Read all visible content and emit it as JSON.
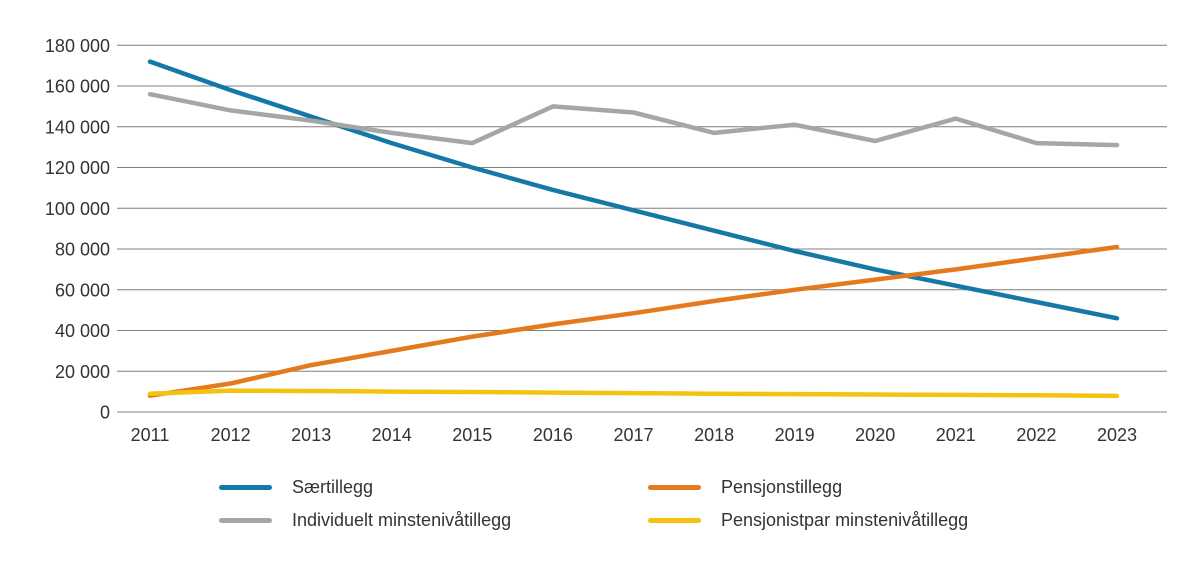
{
  "chart_data": {
    "type": "line",
    "categories": [
      "2011",
      "2012",
      "2013",
      "2014",
      "2015",
      "2016",
      "2017",
      "2018",
      "2019",
      "2020",
      "2021",
      "2022",
      "2023"
    ],
    "series": [
      {
        "name": "Særtillegg",
        "color": "#1579a7",
        "values": [
          172000,
          158000,
          145000,
          132000,
          120000,
          109000,
          99000,
          89000,
          79000,
          70000,
          62000,
          54000,
          46000
        ]
      },
      {
        "name": "Pensjonstillegg",
        "color": "#e5791d",
        "values": [
          8000,
          14000,
          23000,
          30000,
          37000,
          43000,
          48500,
          54500,
          60000,
          65000,
          70000,
          75500,
          81000
        ]
      },
      {
        "name": "Individuelt minstenivåtillegg",
        "color": "#a6a6a6",
        "values": [
          156000,
          148000,
          143000,
          137000,
          132000,
          150000,
          147000,
          137000,
          141000,
          133000,
          144000,
          132000,
          131000
        ]
      },
      {
        "name": "Pensjonistpar minstenivåtillegg",
        "color": "#f3c311",
        "values": [
          9000,
          10500,
          10300,
          10000,
          9800,
          9500,
          9300,
          9000,
          8800,
          8600,
          8400,
          8200,
          7900
        ]
      }
    ],
    "y_axis": {
      "min": 0,
      "max": 180000,
      "step": 20000,
      "tick_labels": [
        "0",
        "20 000",
        "40 000",
        "60 000",
        "80 000",
        "100 000",
        "120 000",
        "140 000",
        "160 000",
        "180 000"
      ]
    },
    "grid": "horizontal",
    "legend_position": "bottom"
  }
}
